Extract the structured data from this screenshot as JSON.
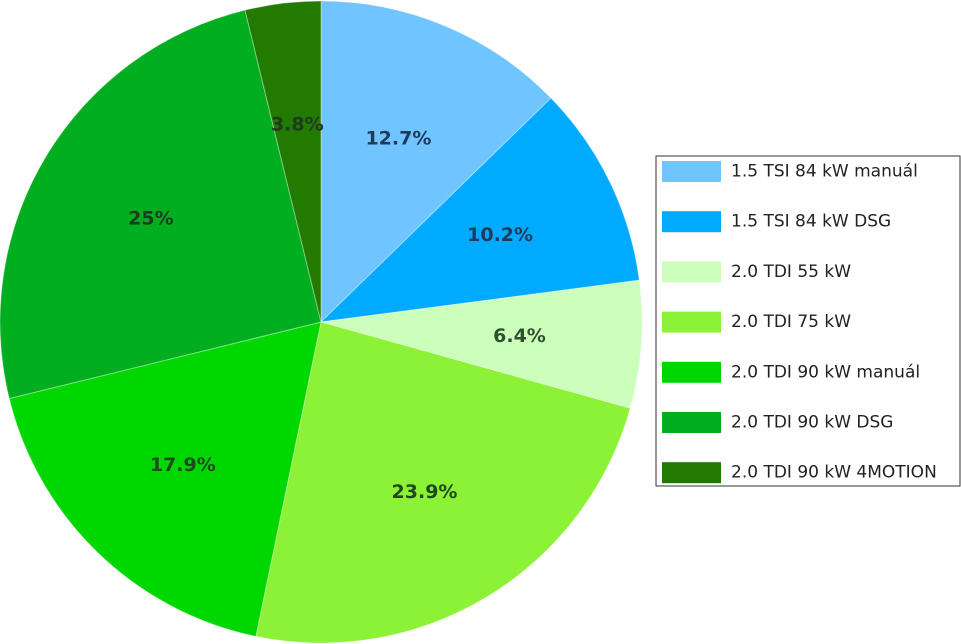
{
  "chart_data": {
    "type": "pie",
    "title": "",
    "start_angle_deg": 0,
    "direction": "clockwise",
    "legend_position": "right",
    "series": [
      {
        "name": "1.5 TSI 84 kW manuál",
        "value": 12.7,
        "label": "12.7%",
        "color": "#70c4ff",
        "label_color": "#1f3a5a"
      },
      {
        "name": "1.5 TSI 84 kW DSG",
        "value": 10.2,
        "label": "10.2%",
        "color": "#00aaff",
        "label_color": "#1f3a5a"
      },
      {
        "name": "2.0 TDI 55 kW",
        "value": 6.4,
        "label": "6.4%",
        "color": "#ccffbb",
        "label_color": "#2f4f2f"
      },
      {
        "name": "2.0 TDI 75 kW",
        "value": 23.9,
        "label": "23.9%",
        "color": "#8cf236",
        "label_color": "#1f4a1f"
      },
      {
        "name": "2.0 TDI 90 kW manuál",
        "value": 17.9,
        "label": "17.9%",
        "color": "#00d700",
        "label_color": "#1f4a1f"
      },
      {
        "name": "2.0 TDI 90 kW DSG",
        "value": 25,
        "label": "25%",
        "color": "#00ae1f",
        "label_color": "#1f3a1f"
      },
      {
        "name": "2.0 TDI 90 kW 4MOTION",
        "value": 3.8,
        "label": "3.8%",
        "color": "#227a00",
        "label_color": "#1f3a1f"
      }
    ]
  }
}
